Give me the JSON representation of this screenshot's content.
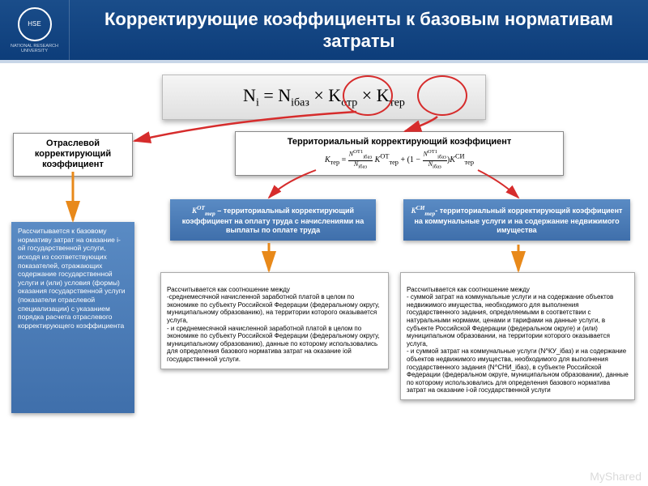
{
  "header": {
    "title": "Корректирующие коэффициенты к базовым нормативам затраты",
    "logo_inner": "HSE",
    "logo_sub": "NATIONAL RESEARCH UNIVERSITY"
  },
  "formula": {
    "text_html": "N<sub>i</sub>  = N<sub>iбаз</sub> × K<sub>отр</sub> × K<sub>тер</sub>"
  },
  "box_sector": {
    "text": "Отраслевой корректирующий коэффициент"
  },
  "box_territorial": {
    "title": "Территориальный корректирующий коэффициент",
    "sub": "K_тер = (N^ОТ1_iбаз / N_iбаз) K^ОТ_тер + (1 − N^ОТ1_iбаз / N_iбаз) K^СИ_тер"
  },
  "blue_left": {
    "text": "Рассчитывается к базовому нормативу затрат на оказание i-ой государственной услуги, исходя из соответствующих показателей, отражающих содержание государственной услуги и (или) условия (формы) оказания государственной услуги (показатели отраслевой специализации) с указанием порядка расчета отраслевого корректирующего коэффициента"
  },
  "blue_kot": {
    "prefix": "K^ОТ_тер",
    "text": " – территориальный корректирующий коэффициент на оплату труда с начислениями на выплаты по оплате труда"
  },
  "blue_ksi": {
    "prefix": "K^СИ_тер",
    "text": "- территориальный корректирующий коэффициент на коммунальные услуги и на содержание недвижимого имущества"
  },
  "desc_mid": {
    "text": "Рассчитывается как соотношение между\n-среднемесячной начисленной заработной платой в целом по экономике по субъекту Российской Федерации (федеральному округу, муниципальному образованию), на территории которого оказывается услуга,\n- и среднемесячной начисленной заработной платой в целом по экономике по субъекту Российской Федерации (федеральному округу, муниципальному образованию), данные по которому использовались для определения базового норматива затрат на оказание iой государственной услуги."
  },
  "desc_right": {
    "text": "Рассчитывается как соотношение между\n- суммой затрат на коммунальные услуги и на содержание объектов недвижимого имущества, необходимого для выполнения государственного задания, определяемыми в соответствии с натуральными нормами, ценами и тарифами на данные услуги, в субъекте Российской Федерации (федеральном округе) и (или) муниципальном образовании, на территории которого оказывается услуга,\n- и суммой затрат на коммунальные услуги (N^КУ_iбаз) и на содержание объектов недвижимого имущества, необходимого для выполнения государственного задания (N^СНИ_iбаз), в субъекте Российской Федерации (федеральном округе, муниципальном образовании), данные по которому использовались для определения базового норматива затрат на оказание i-ой государственной услуги"
  },
  "colors": {
    "header_bg": "#1a4d8a",
    "blue_box": "#4a7ab5",
    "red": "#d62c2c",
    "orange": "#e8891a"
  },
  "watermark": "MyShared"
}
